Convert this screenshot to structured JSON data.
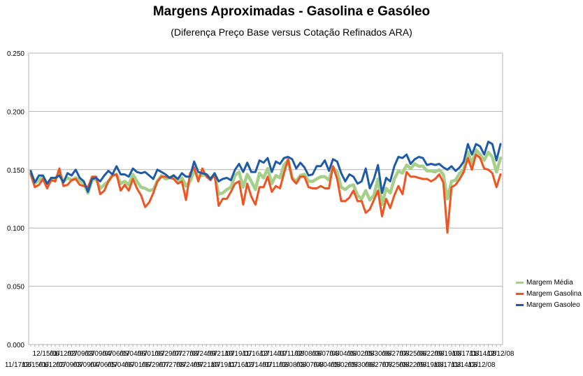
{
  "chart_data": {
    "type": "line",
    "title": "Margens Aproximadas - Gasolina e Gasóleo",
    "subtitle": "(Diferença Preço Base versus Cotação Refinados ARA)",
    "ylim": [
      0.0,
      0.25
    ],
    "yticks": [
      "0.000",
      "0.050",
      "0.100",
      "0.150",
      "0.200",
      "0.250"
    ],
    "grid": true,
    "legend_position": "right",
    "x_tick_labels_row1": [
      "12/15/06",
      "01/12/07",
      "02/09/07",
      "03/09/07",
      "04/06/07",
      "05/04/07",
      "06/01/07",
      "06/29/07",
      "07/27/07",
      "08/24/07",
      "09/21/07",
      "10/19/07",
      "11/16/07",
      "12/14/07",
      "01/11/08",
      "02/08/08",
      "03/07/08",
      "04/04/08",
      "05/02/08",
      "05/30/08",
      "06/27/08",
      "07/25/08",
      "08/22/08",
      "09/19/08",
      "10/17/08",
      "11/14/08",
      "12/12/08"
    ],
    "x_tick_labels_row2": [
      "11/17/06",
      "12/15/06",
      "01/12/07",
      "02/09/07",
      "03/09/07",
      "04/06/07",
      "05/04/07",
      "06/01/07",
      "06/29/07",
      "07/27/07",
      "08/24/07",
      "09/21/07",
      "10/19/07",
      "11/16/07",
      "12/14/07",
      "01/11/08",
      "02/08/08",
      "03/07/08",
      "04/04/08",
      "05/02/08",
      "05/30/08",
      "06/27/08",
      "07/25/08",
      "08/22/08",
      "09/19/08",
      "10/17/08",
      "11/14/08",
      "12/12/08"
    ],
    "series": [
      {
        "name": "Margem Média",
        "color": "#a6cf8a",
        "values": [
          0.147,
          0.138,
          0.141,
          0.144,
          0.137,
          0.142,
          0.142,
          0.147,
          0.14,
          0.143,
          0.141,
          0.143,
          0.141,
          0.138,
          0.13,
          0.141,
          0.142,
          0.134,
          0.137,
          0.14,
          0.145,
          0.146,
          0.138,
          0.14,
          0.137,
          0.146,
          0.14,
          0.135,
          0.134,
          0.132,
          0.133,
          0.14,
          0.145,
          0.142,
          0.143,
          0.145,
          0.14,
          0.143,
          0.136,
          0.14,
          0.149,
          0.144,
          0.145,
          0.146,
          0.142,
          0.146,
          0.129,
          0.13,
          0.133,
          0.135,
          0.145,
          0.148,
          0.135,
          0.146,
          0.14,
          0.133,
          0.147,
          0.143,
          0.151,
          0.138,
          0.145,
          0.143,
          0.154,
          0.158,
          0.143,
          0.14,
          0.145,
          0.146,
          0.14,
          0.14,
          0.142,
          0.144,
          0.144,
          0.141,
          0.152,
          0.148,
          0.135,
          0.133,
          0.136,
          0.137,
          0.128,
          0.125,
          0.132,
          0.124,
          0.128,
          0.142,
          0.12,
          0.134,
          0.13,
          0.142,
          0.149,
          0.147,
          0.154,
          0.151,
          0.155,
          0.153,
          0.153,
          0.149,
          0.149,
          0.148,
          0.15,
          0.146,
          0.125,
          0.14,
          0.141,
          0.147,
          0.15,
          0.165,
          0.155,
          0.167,
          0.163,
          0.158,
          0.165,
          0.161,
          0.148,
          0.16
        ]
      },
      {
        "name": "Margem Gasolina",
        "color": "#ee5522",
        "values": [
          0.146,
          0.135,
          0.137,
          0.142,
          0.134,
          0.141,
          0.14,
          0.151,
          0.136,
          0.137,
          0.141,
          0.142,
          0.137,
          0.136,
          0.135,
          0.144,
          0.144,
          0.129,
          0.132,
          0.14,
          0.145,
          0.146,
          0.132,
          0.137,
          0.132,
          0.142,
          0.134,
          0.128,
          0.118,
          0.122,
          0.13,
          0.14,
          0.144,
          0.144,
          0.143,
          0.142,
          0.138,
          0.14,
          0.124,
          0.147,
          0.152,
          0.14,
          0.151,
          0.144,
          0.141,
          0.146,
          0.119,
          0.125,
          0.125,
          0.131,
          0.138,
          0.14,
          0.12,
          0.138,
          0.127,
          0.12,
          0.135,
          0.135,
          0.144,
          0.131,
          0.136,
          0.134,
          0.147,
          0.159,
          0.142,
          0.138,
          0.144,
          0.144,
          0.135,
          0.134,
          0.134,
          0.136,
          0.134,
          0.134,
          0.153,
          0.142,
          0.123,
          0.123,
          0.126,
          0.132,
          0.123,
          0.123,
          0.113,
          0.116,
          0.124,
          0.132,
          0.11,
          0.125,
          0.117,
          0.128,
          0.136,
          0.129,
          0.148,
          0.144,
          0.144,
          0.143,
          0.142,
          0.142,
          0.14,
          0.142,
          0.146,
          0.139,
          0.096,
          0.135,
          0.137,
          0.142,
          0.148,
          0.16,
          0.15,
          0.163,
          0.16,
          0.151,
          0.15,
          0.147,
          0.135,
          0.146
        ]
      },
      {
        "name": "Margem Gasoleo",
        "color": "#1f5aa6",
        "values": [
          0.149,
          0.139,
          0.145,
          0.145,
          0.138,
          0.143,
          0.143,
          0.145,
          0.139,
          0.147,
          0.145,
          0.15,
          0.143,
          0.14,
          0.131,
          0.142,
          0.143,
          0.14,
          0.145,
          0.149,
          0.146,
          0.153,
          0.146,
          0.146,
          0.144,
          0.151,
          0.148,
          0.147,
          0.148,
          0.145,
          0.142,
          0.15,
          0.148,
          0.146,
          0.143,
          0.145,
          0.142,
          0.147,
          0.144,
          0.144,
          0.157,
          0.148,
          0.147,
          0.146,
          0.142,
          0.147,
          0.14,
          0.142,
          0.143,
          0.141,
          0.15,
          0.155,
          0.148,
          0.156,
          0.148,
          0.148,
          0.158,
          0.156,
          0.16,
          0.148,
          0.157,
          0.155,
          0.16,
          0.161,
          0.159,
          0.151,
          0.156,
          0.152,
          0.145,
          0.146,
          0.153,
          0.153,
          0.158,
          0.149,
          0.159,
          0.157,
          0.147,
          0.14,
          0.146,
          0.144,
          0.138,
          0.14,
          0.151,
          0.134,
          0.142,
          0.154,
          0.13,
          0.143,
          0.14,
          0.153,
          0.161,
          0.16,
          0.163,
          0.155,
          0.159,
          0.161,
          0.16,
          0.154,
          0.155,
          0.154,
          0.155,
          0.152,
          0.15,
          0.153,
          0.149,
          0.152,
          0.157,
          0.172,
          0.163,
          0.172,
          0.17,
          0.163,
          0.174,
          0.172,
          0.158,
          0.172
        ]
      }
    ]
  }
}
